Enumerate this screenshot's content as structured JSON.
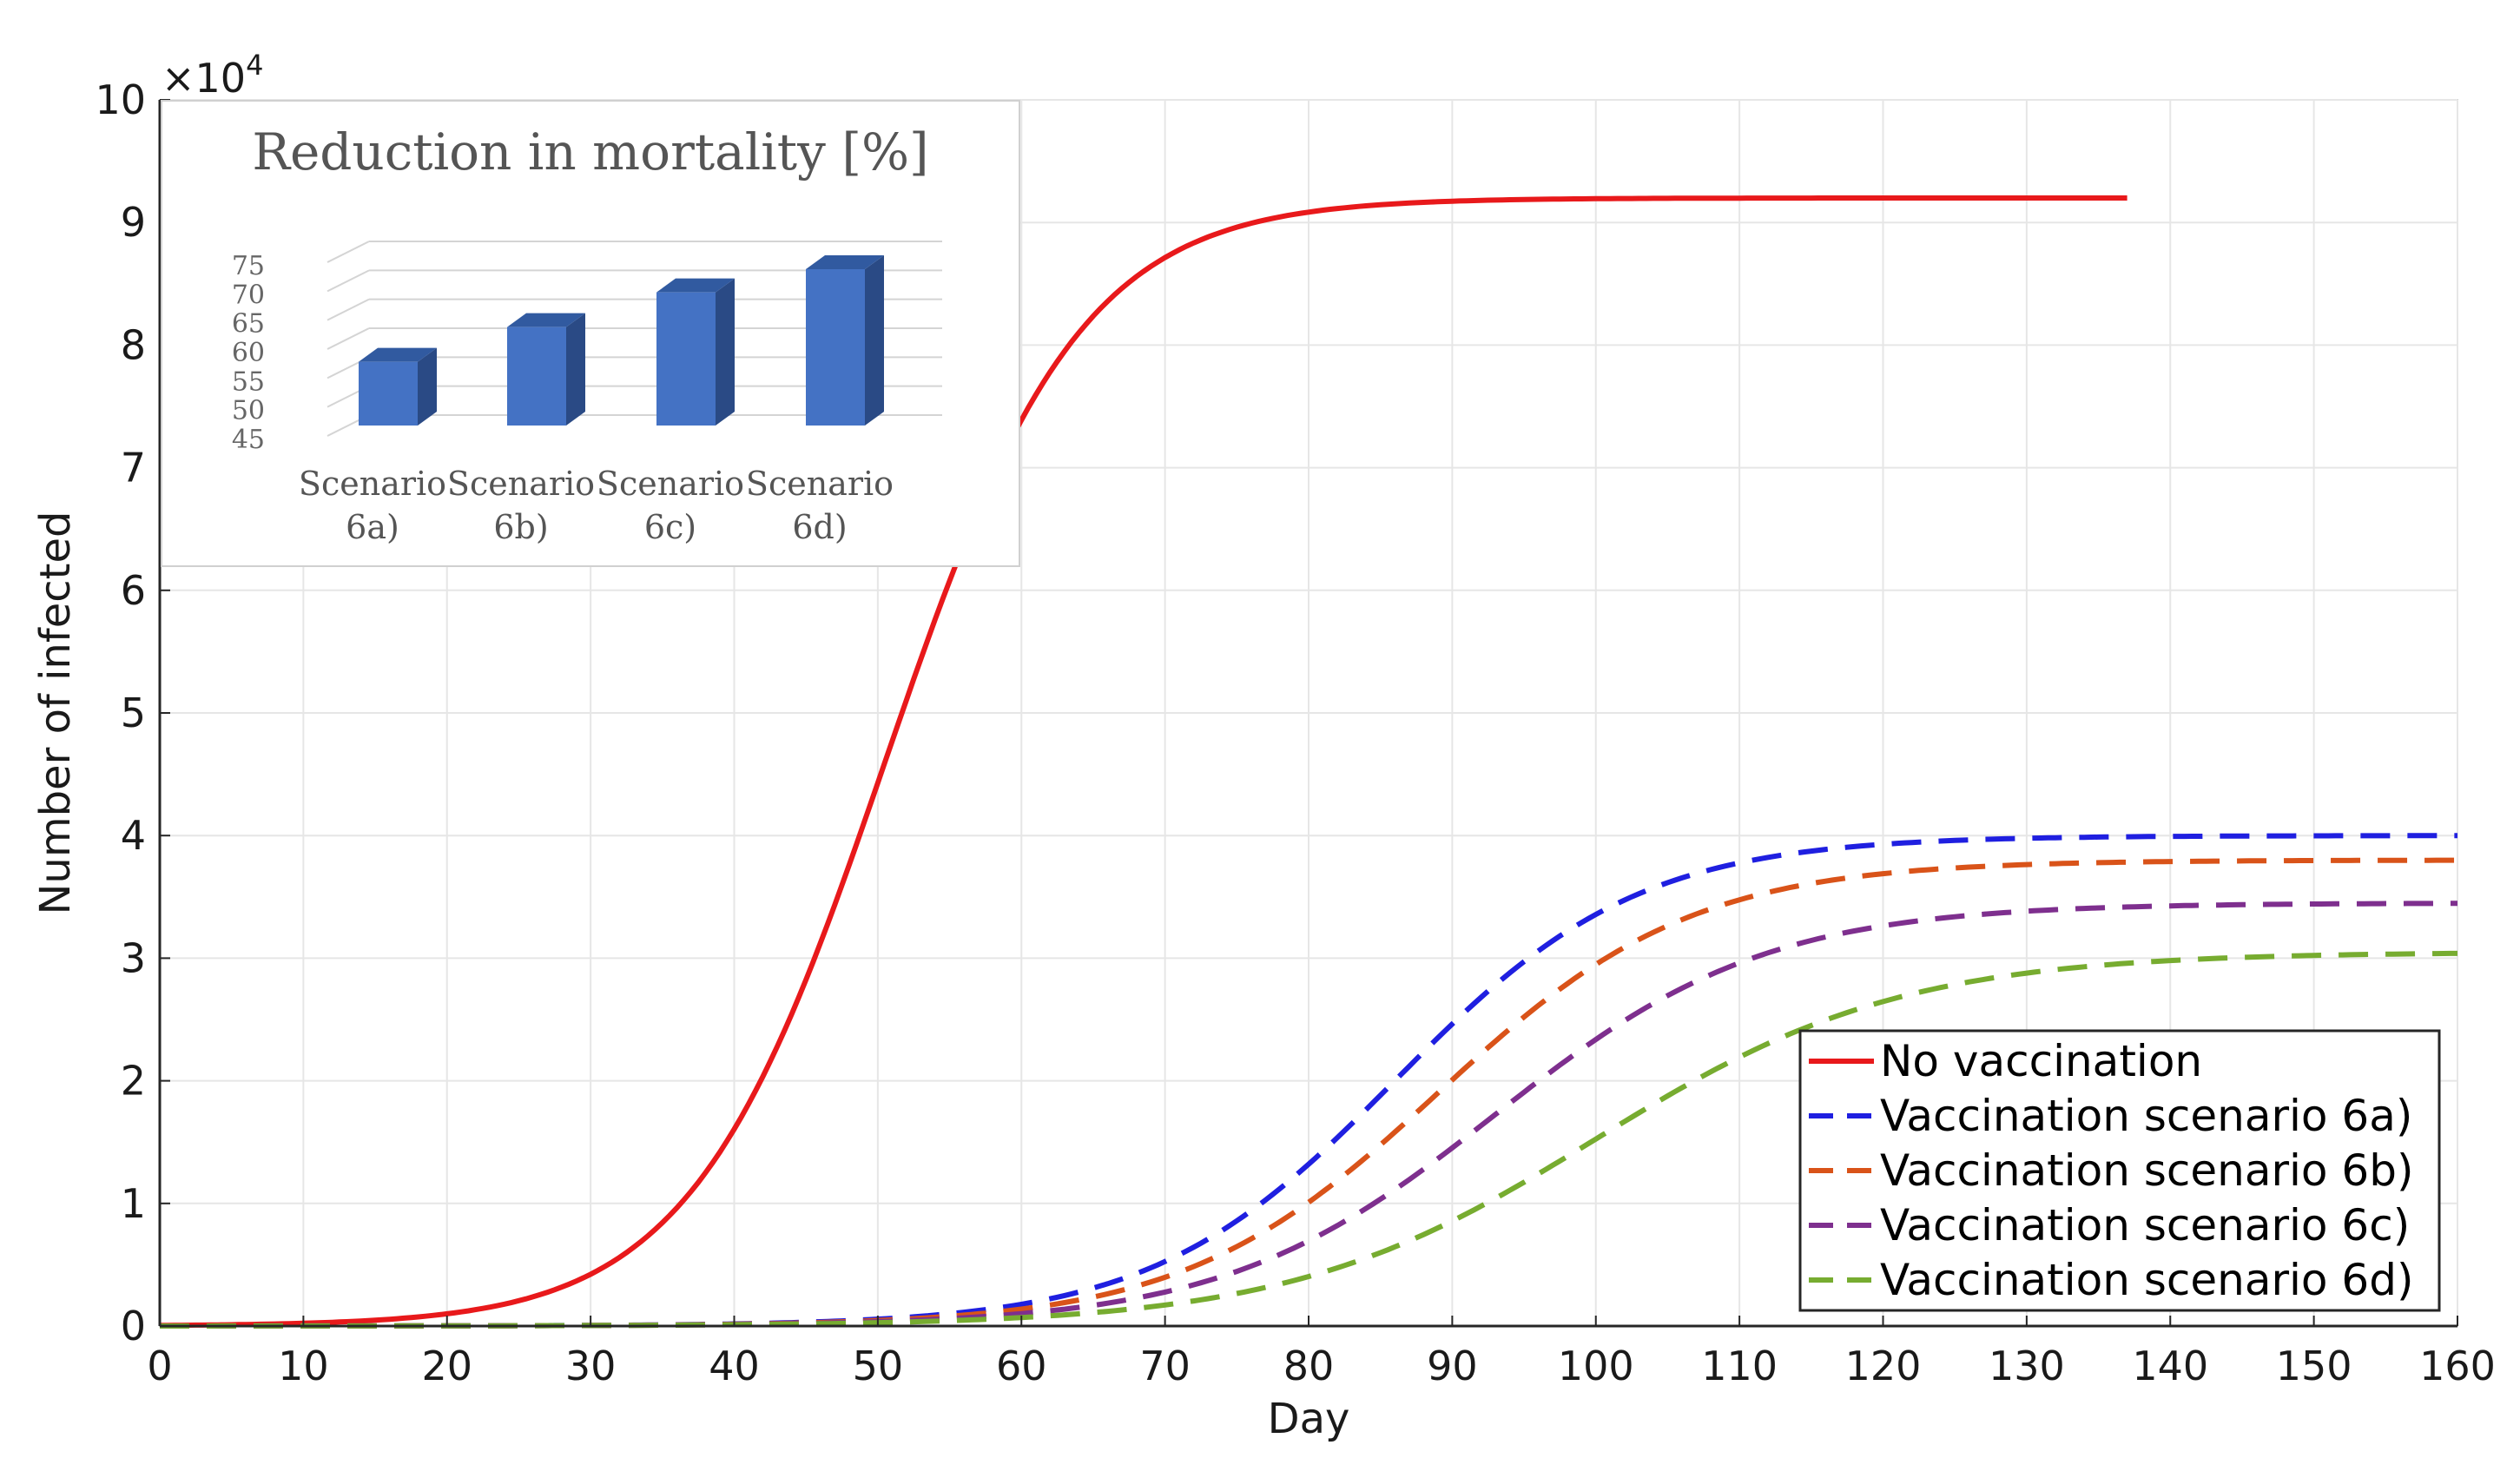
{
  "chart_data": [
    {
      "type": "line",
      "xlabel": "Day",
      "ylabel": "Number of infected",
      "xlim": [
        0,
        160
      ],
      "ylim": [
        0,
        10
      ],
      "y_multiplier_label": "×10",
      "y_multiplier_exponent": "4",
      "xticks": [
        0,
        10,
        20,
        30,
        40,
        50,
        60,
        70,
        80,
        90,
        100,
        110,
        120,
        130,
        140,
        150,
        160
      ],
      "yticks": [
        0,
        1,
        2,
        3,
        4,
        5,
        6,
        7,
        8,
        9,
        10
      ],
      "grid": true,
      "legend_position": "bottom-right",
      "series": [
        {
          "name": "No vaccination",
          "color": "#e8191b",
          "dash": "solid",
          "L": 9.2,
          "k": 0.148,
          "x0": 50.5,
          "x_end": 137
        },
        {
          "name": "Vaccination scenario 6a)",
          "color": "#1f1fe0",
          "dash": "dashed",
          "L": 4.0,
          "k": 0.118,
          "x0": 86,
          "x_end": 160
        },
        {
          "name": "Vaccination scenario 6b)",
          "color": "#d95319",
          "dash": "dashed",
          "L": 3.8,
          "k": 0.113,
          "x0": 89,
          "x_end": 160
        },
        {
          "name": "Vaccination scenario 6c)",
          "color": "#7e2f8e",
          "dash": "dashed",
          "L": 3.45,
          "k": 0.106,
          "x0": 93,
          "x_end": 160
        },
        {
          "name": "Vaccination scenario 6d)",
          "color": "#77ac30",
          "dash": "dashed",
          "L": 3.05,
          "k": 0.094,
          "x0": 100,
          "x_end": 160
        }
      ]
    },
    {
      "type": "bar",
      "title": "Reduction in mortality [%]",
      "categories": [
        [
          "Scenario",
          "6a)"
        ],
        [
          "Scenario",
          "6b)"
        ],
        [
          "Scenario",
          "6c)"
        ],
        [
          "Scenario",
          "6d)"
        ]
      ],
      "values": [
        56,
        62,
        68,
        72
      ],
      "ylim": [
        45,
        75
      ],
      "yticks": [
        45,
        50,
        55,
        60,
        65,
        70,
        75
      ],
      "bar_color": "#4472c4"
    }
  ]
}
